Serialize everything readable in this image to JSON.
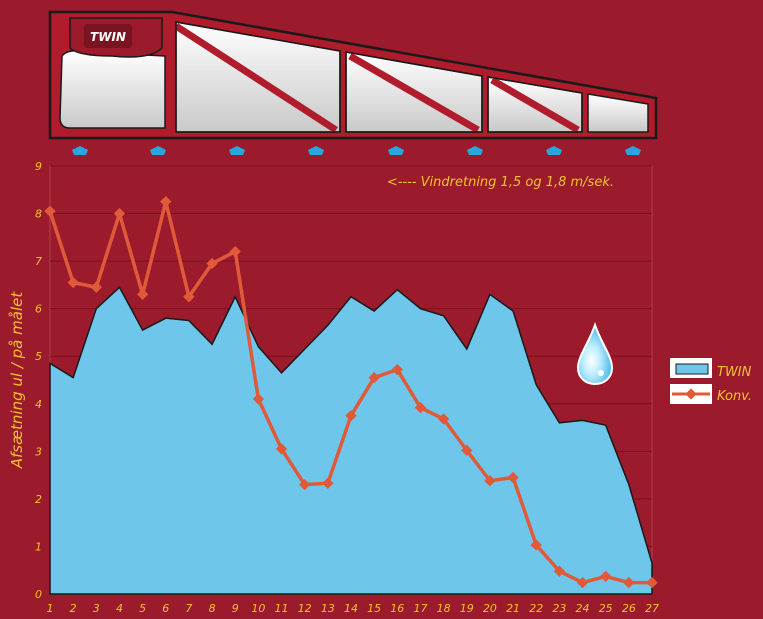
{
  "chart_data": {
    "type": "area",
    "title": "",
    "ylabel": "Afsætning ul / på målet",
    "xlabel": "",
    "annotation": "<---- Vindretning 1,5 og 1,8 m/sek.",
    "logo_text": "TWIN",
    "categories": [
      "1",
      "2",
      "3",
      "4",
      "5",
      "6",
      "7",
      "8",
      "9",
      "10",
      "11",
      "12",
      "13",
      "14",
      "15",
      "16",
      "17",
      "18",
      "19",
      "20",
      "21",
      "22",
      "23",
      "24",
      "25",
      "26",
      "27"
    ],
    "ylim": [
      0,
      9
    ],
    "yticks": [
      "0",
      "1",
      "2",
      "3",
      "4",
      "5",
      "6",
      "7",
      "8",
      "9"
    ],
    "grid": true,
    "legend_position": "right",
    "series": [
      {
        "name": "TWIN",
        "type": "area",
        "color": "#6ec6ea",
        "values": [
          4.85,
          4.55,
          6.0,
          6.45,
          5.55,
          5.8,
          5.75,
          5.25,
          6.25,
          5.2,
          4.65,
          5.15,
          5.65,
          6.25,
          5.95,
          6.4,
          6.0,
          5.85,
          5.15,
          6.3,
          5.95,
          4.4,
          3.6,
          3.65,
          3.55,
          2.3,
          0.65
        ]
      },
      {
        "name": "Konv.",
        "type": "line",
        "color": "#e05a3a",
        "values": [
          8.05,
          6.55,
          6.45,
          8.0,
          6.3,
          8.25,
          6.25,
          6.95,
          7.2,
          4.1,
          3.05,
          2.3,
          2.33,
          3.75,
          4.55,
          4.72,
          3.92,
          3.68,
          3.02,
          2.38,
          2.45,
          1.03,
          0.48,
          0.24,
          0.37,
          0.24,
          0.24
        ]
      }
    ]
  },
  "colors": {
    "background": "#9b1b2c",
    "boom_frame": "#b01c2b",
    "boom_outline": "#1a1a1a",
    "tank": "#e8e8e8",
    "nozzle": "#2aa6df",
    "text": "#f2c230",
    "grid": "#b04050",
    "drop": "#7fd3f5"
  },
  "icons": {
    "drop": "water-drop-icon",
    "logo": "twin-logo"
  }
}
